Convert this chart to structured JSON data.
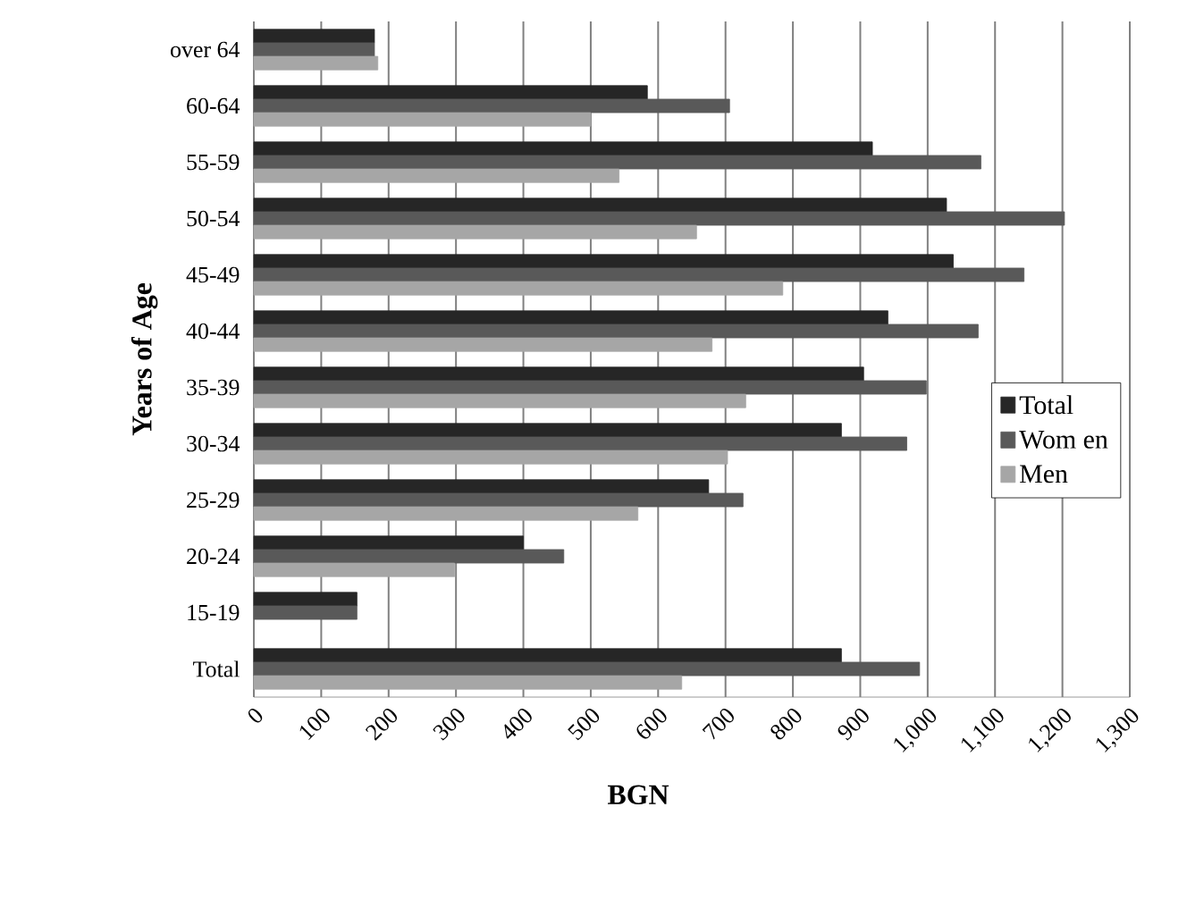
{
  "chart_data": {
    "type": "bar",
    "orientation": "horizontal",
    "xlabel": "BGN",
    "ylabel": "Years of Age",
    "categories": [
      "over 64",
      "60-64",
      "55-59",
      "50-54",
      "45-49",
      "40-44",
      "35-39",
      "30-34",
      "25-29",
      "20-24",
      "15-19",
      "Total"
    ],
    "series": [
      {
        "name": "Total",
        "color": "#262626",
        "values": [
          179,
          584,
          918,
          1028,
          1038,
          941,
          905,
          872,
          675,
          400,
          153,
          872
        ]
      },
      {
        "name": "Wom en",
        "color": "#595959",
        "values": [
          179,
          706,
          1079,
          1203,
          1143,
          1075,
          998,
          969,
          726,
          460,
          153,
          988
        ]
      },
      {
        "name": "Men",
        "color": "#a6a6a6",
        "values": [
          184,
          500,
          542,
          657,
          785,
          680,
          730,
          703,
          570,
          298,
          null,
          635
        ]
      }
    ],
    "xlim": [
      0,
      1300
    ],
    "xticks": [
      0,
      100,
      200,
      300,
      400,
      500,
      600,
      700,
      800,
      900,
      {
        "value": 1000,
        "label": "1,000"
      },
      {
        "value": 1100,
        "label": "1,100"
      },
      {
        "value": 1200,
        "label": "1,200"
      },
      {
        "value": 1300,
        "label": "1,300"
      }
    ],
    "grid": "x",
    "legend": "right"
  }
}
